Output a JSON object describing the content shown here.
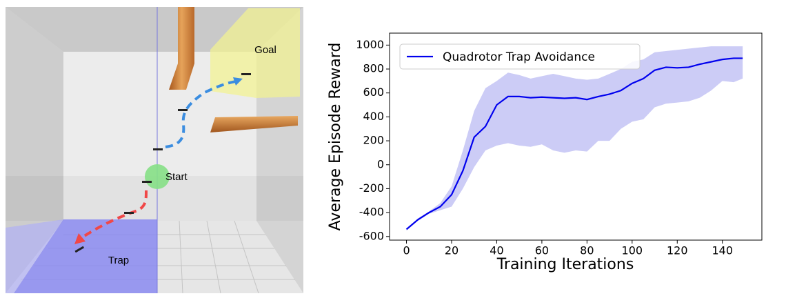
{
  "scene": {
    "goal_label": "Goal",
    "start_label": "Start",
    "trap_label": "Trap"
  },
  "chart_data": {
    "type": "line",
    "x": [
      0,
      5,
      10,
      15,
      20,
      25,
      30,
      35,
      40,
      45,
      50,
      55,
      60,
      65,
      70,
      75,
      80,
      85,
      90,
      95,
      100,
      105,
      110,
      115,
      120,
      125,
      130,
      135,
      140,
      145,
      149
    ],
    "series": [
      {
        "name": "Quadrotor Trap Avoidance",
        "color": "#0000ee",
        "values": [
          -540,
          -460,
          -400,
          -350,
          -250,
          -50,
          230,
          320,
          500,
          570,
          570,
          560,
          565,
          560,
          555,
          560,
          545,
          570,
          590,
          620,
          680,
          720,
          790,
          815,
          810,
          815,
          840,
          860,
          880,
          890,
          890
        ]
      }
    ],
    "band": {
      "color": "#9999ee",
      "upper": [
        -540,
        -450,
        -390,
        -320,
        -180,
        120,
        450,
        640,
        700,
        770,
        750,
        720,
        740,
        760,
        740,
        720,
        710,
        720,
        760,
        800,
        860,
        880,
        940,
        950,
        960,
        970,
        980,
        990,
        990,
        990,
        990
      ],
      "lower": [
        -550,
        -470,
        -410,
        -380,
        -350,
        -200,
        -20,
        120,
        160,
        180,
        160,
        150,
        170,
        120,
        100,
        120,
        110,
        200,
        200,
        300,
        360,
        380,
        480,
        510,
        520,
        530,
        560,
        620,
        700,
        690,
        720
      ]
    },
    "xlabel": "Training Iterations",
    "ylabel": "Average Episode Reward",
    "xlim": [
      -7.5,
      157.5
    ],
    "ylim": [
      -630,
      1100
    ],
    "xticks": [
      0,
      20,
      40,
      60,
      80,
      100,
      120,
      140
    ],
    "yticks": [
      -600,
      -400,
      -200,
      0,
      200,
      400,
      600,
      800,
      1000
    ],
    "grid": false,
    "legend": "upper left"
  }
}
